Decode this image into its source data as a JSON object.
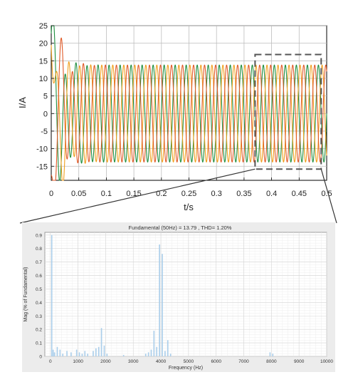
{
  "chart_data": [
    {
      "type": "line",
      "xlabel": "t/s",
      "ylabel": "I/A",
      "xlim": [
        0,
        0.5
      ],
      "ylim": [
        -19,
        25
      ],
      "xticks": [
        "0",
        "0.05",
        "0.1",
        "0.15",
        "0.2",
        "0.25",
        "0.3",
        "0.35",
        "0.4",
        "0.45",
        "0.5"
      ],
      "yticks": [
        "25",
        "20",
        "15",
        "10",
        "5",
        "0",
        "-5",
        "-10",
        "-15"
      ],
      "grid": true,
      "frequency_hz": 50,
      "steady_amplitude": 13.8,
      "series": [
        {
          "color": "#1e8e3e",
          "phase_deg": 0,
          "initial_peak": 22.8
        },
        {
          "color": "#f0a020",
          "phase_deg": -120,
          "initial_peak": 19.5
        },
        {
          "color": "#e05a28",
          "phase_deg": 120,
          "initial_peak": -17.5
        }
      ],
      "zoom_box": {
        "x": [
          0.37,
          0.49
        ],
        "y": [
          -15.8,
          16.8
        ]
      }
    },
    {
      "type": "bar",
      "title": "Fundamental (50Hz) = 13.79 , THD= 1.20%",
      "xlabel": "Frequency (Hz)",
      "ylabel": "Mag (% of Fundamental)",
      "xlim": [
        -200,
        10000
      ],
      "ylim": [
        0,
        0.92
      ],
      "xticks": [
        "0",
        "1000",
        "2000",
        "3000",
        "4000",
        "5000",
        "6000",
        "7000",
        "8000",
        "9000",
        "10000"
      ],
      "yticks": [
        "0.9",
        "0.8",
        "0.7",
        "0.6",
        "0.5",
        "0.4",
        "0.3",
        "0.2",
        "0.1",
        "0"
      ],
      "grid": true,
      "bar_color": "#a9cdea",
      "harmonics": [
        {
          "f": 50,
          "v": 0.9
        },
        {
          "f": 100,
          "v": 0.05
        },
        {
          "f": 150,
          "v": 0.03
        },
        {
          "f": 250,
          "v": 0.07
        },
        {
          "f": 350,
          "v": 0.05
        },
        {
          "f": 450,
          "v": 0.02
        },
        {
          "f": 600,
          "v": 0.04
        },
        {
          "f": 750,
          "v": 0.03
        },
        {
          "f": 950,
          "v": 0.05
        },
        {
          "f": 1050,
          "v": 0.03
        },
        {
          "f": 1150,
          "v": 0.02
        },
        {
          "f": 1250,
          "v": 0.04
        },
        {
          "f": 1350,
          "v": 0.02
        },
        {
          "f": 1550,
          "v": 0.04
        },
        {
          "f": 1650,
          "v": 0.06
        },
        {
          "f": 1750,
          "v": 0.07
        },
        {
          "f": 1850,
          "v": 0.21
        },
        {
          "f": 1950,
          "v": 0.08
        },
        {
          "f": 2050,
          "v": 0.02
        },
        {
          "f": 2650,
          "v": 0.01
        },
        {
          "f": 3450,
          "v": 0.02
        },
        {
          "f": 3550,
          "v": 0.03
        },
        {
          "f": 3650,
          "v": 0.05
        },
        {
          "f": 3750,
          "v": 0.19
        },
        {
          "f": 3850,
          "v": 0.07
        },
        {
          "f": 3950,
          "v": 0.83
        },
        {
          "f": 4050,
          "v": 0.76
        },
        {
          "f": 4150,
          "v": 0.04
        },
        {
          "f": 4250,
          "v": 0.12
        },
        {
          "f": 4350,
          "v": 0.02
        },
        {
          "f": 7950,
          "v": 0.03
        },
        {
          "f": 8050,
          "v": 0.02
        }
      ]
    }
  ]
}
